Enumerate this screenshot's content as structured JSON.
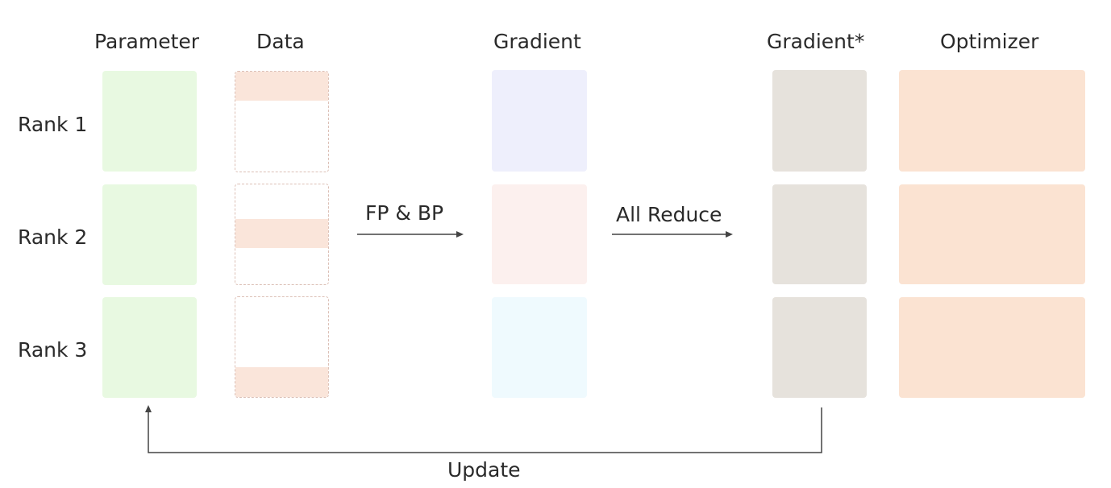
{
  "columns": {
    "parameter": "Parameter",
    "data": "Data",
    "gradient": "Gradient",
    "gradient_reduced": "Gradient*",
    "optimizer": "Optimizer"
  },
  "ranks": [
    "Rank 1",
    "Rank 2",
    "Rank 3"
  ],
  "arrows": {
    "forward_backward": "FP & BP",
    "all_reduce": "All Reduce",
    "update": "Update"
  },
  "colors": {
    "parameter": "#e8f9e1",
    "data_slice": "#fae5da",
    "data_border": "#dcc0b6",
    "gradient_rank1": "#eeeffc",
    "gradient_rank2": "#fcf0ee",
    "gradient_rank3": "#effafe",
    "gradient_reduced": "#e6e2dc",
    "optimizer": "#fbe3d2",
    "arrow": "#444444"
  }
}
